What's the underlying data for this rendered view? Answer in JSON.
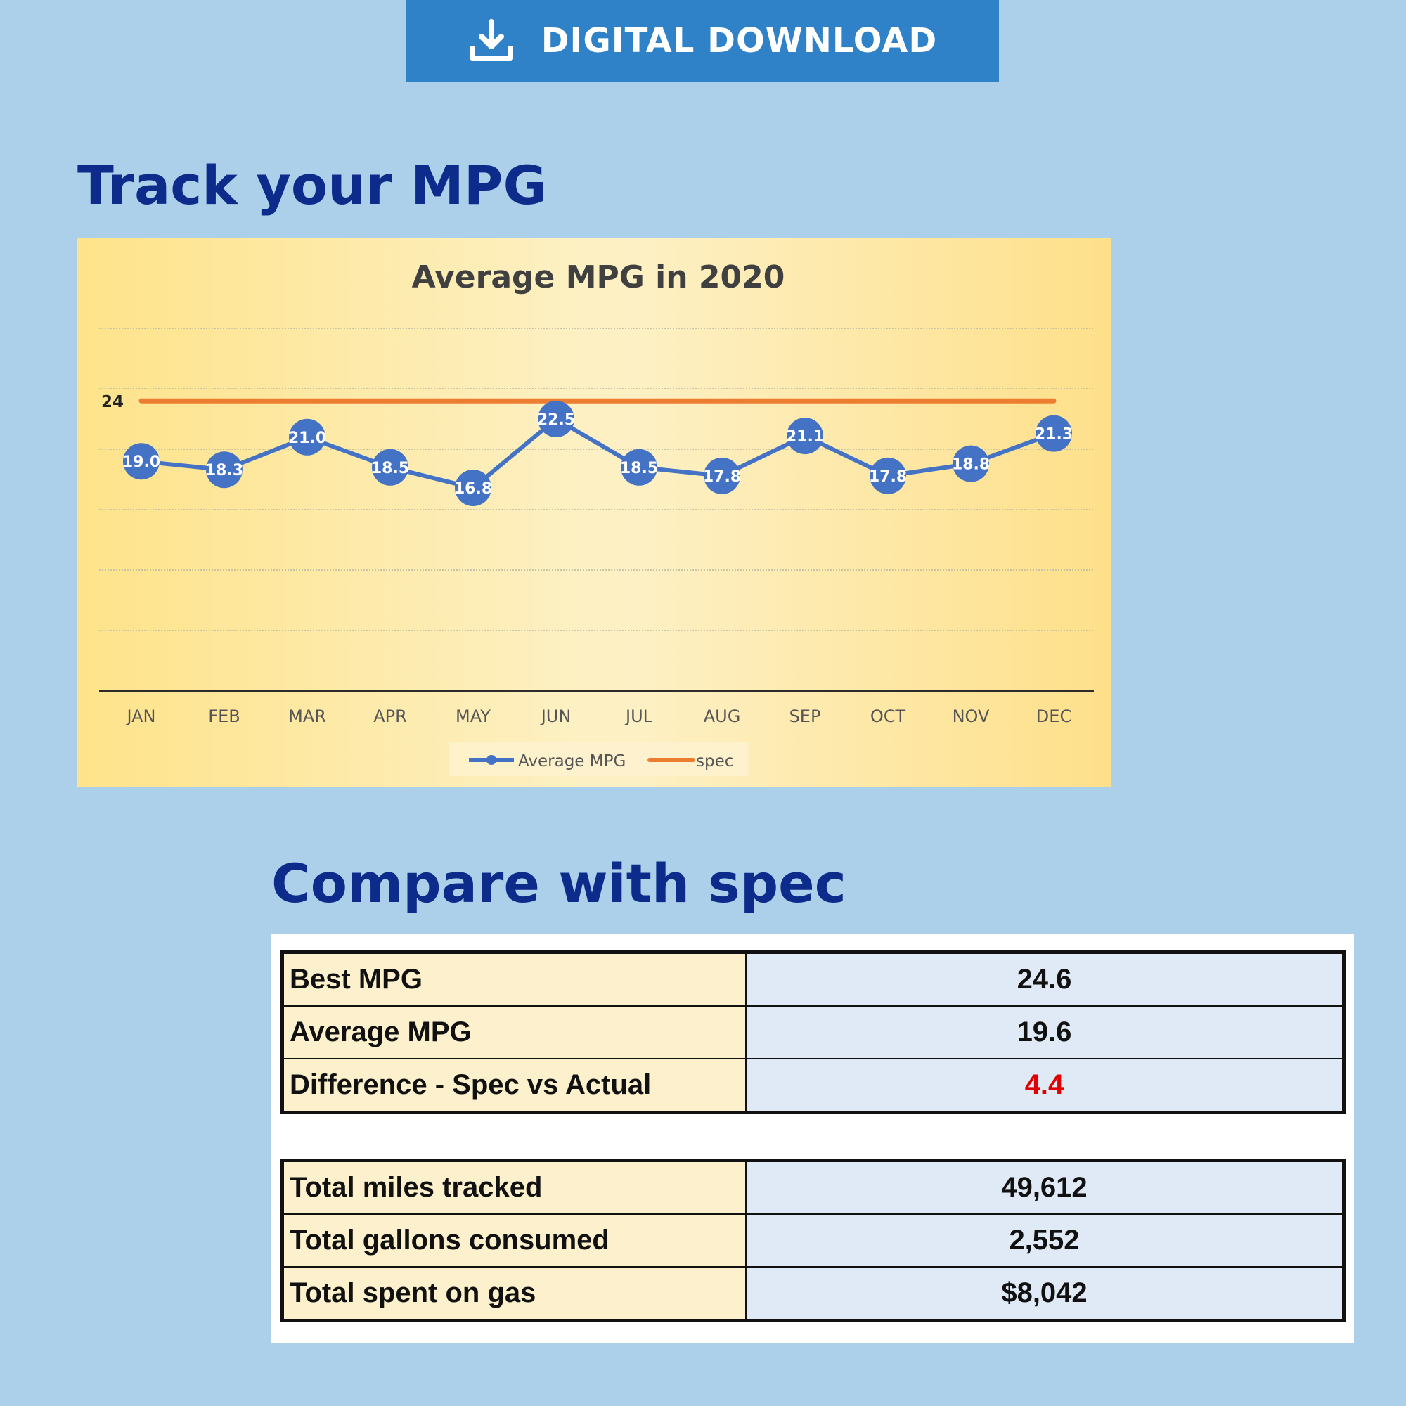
{
  "banner": {
    "label": "DIGITAL DOWNLOAD",
    "icon": "download-icon"
  },
  "headings": {
    "track": "Track your MPG",
    "compare": "Compare with spec"
  },
  "chart_data": {
    "type": "line",
    "title": "Average MPG in 2020",
    "categories": [
      "JAN",
      "FEB",
      "MAR",
      "APR",
      "MAY",
      "JUN",
      "JUL",
      "AUG",
      "SEP",
      "OCT",
      "NOV",
      "DEC"
    ],
    "series": [
      {
        "name": "Average MPG",
        "color": "#4472c4",
        "values": [
          19.0,
          18.3,
          21.0,
          18.5,
          16.8,
          22.5,
          18.5,
          17.8,
          21.1,
          17.8,
          18.8,
          21.3
        ],
        "labels": [
          "19.0",
          "18.3",
          "21.0",
          "18.5",
          "16.8",
          "22.5",
          "18.5",
          "17.8",
          "21.1",
          "17.8",
          "18.8",
          "21.3"
        ]
      },
      {
        "name": "spec",
        "color": "#ed7d31",
        "values": [
          24,
          24,
          24,
          24,
          24,
          24,
          24,
          24,
          24,
          24,
          24,
          24
        ],
        "label": "24"
      }
    ],
    "ylim": [
      0,
      30
    ],
    "grid": true,
    "legend": "bottom-center",
    "xlabel": "",
    "ylabel": ""
  },
  "tables": [
    {
      "rows": [
        {
          "label": "Best MPG",
          "value": "24.6"
        },
        {
          "label": "Average MPG",
          "value": "19.6"
        },
        {
          "label": "Difference - Spec vs Actual",
          "value": "4.4",
          "color": "#e00000"
        }
      ]
    },
    {
      "rows": [
        {
          "label": "Total miles tracked",
          "value": "49,612"
        },
        {
          "label": "Total gallons consumed",
          "value": "2,552"
        },
        {
          "label": "Total spent on gas",
          "value": "$8,042"
        }
      ]
    }
  ]
}
